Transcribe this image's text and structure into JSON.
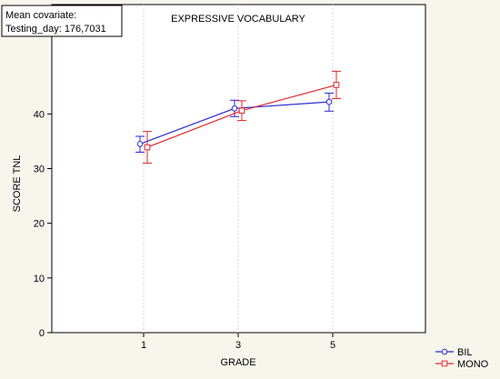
{
  "note_box": {
    "line1": "Mean covariate:",
    "line2": "Testing_day: 176,7031"
  },
  "chart_data": {
    "type": "line",
    "title": "EXPRESSIVE VOCABULARY",
    "xlabel": "GRADE",
    "ylabel": "SCORE TNL",
    "categories": [
      "1",
      "3",
      "5"
    ],
    "ylim": [
      0,
      60
    ],
    "yticks": [
      0,
      10,
      20,
      30,
      40
    ],
    "grid": false,
    "legend_position": "bottom-right",
    "series": [
      {
        "name": "BIL",
        "color": "#2a2ad0",
        "marker": "circle",
        "values": [
          34.5,
          41.0,
          42.2
        ],
        "error_low": [
          33.0,
          39.5,
          40.5
        ],
        "error_high": [
          35.9,
          42.5,
          43.8
        ]
      },
      {
        "name": "MONO",
        "color": "#e0282a",
        "marker": "square",
        "values": [
          33.9,
          40.6,
          45.3
        ],
        "error_low": [
          31.0,
          38.8,
          42.8
        ],
        "error_high": [
          36.8,
          42.4,
          47.8
        ]
      }
    ]
  }
}
